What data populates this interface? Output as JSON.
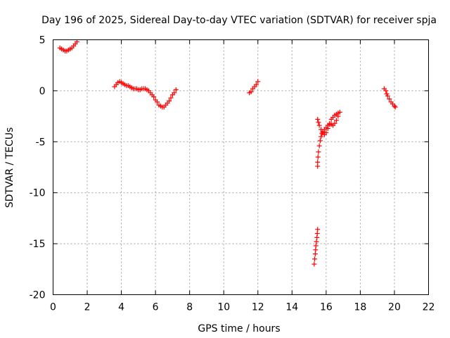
{
  "chart_data": {
    "type": "scatter",
    "title": "Day 196 of 2025, Sidereal Day-to-day VTEC variation (SDTVAR) for receiver spja",
    "xlabel": "GPS time / hours",
    "ylabel": "SDTVAR / TECUs",
    "xlim": [
      0,
      22
    ],
    "ylim": [
      -20,
      5
    ],
    "xticks": [
      0,
      2,
      4,
      6,
      8,
      10,
      12,
      14,
      16,
      18,
      20,
      22
    ],
    "xtick_labels": [
      "0",
      "2",
      "4",
      "6",
      "8",
      "10",
      "12",
      "14",
      "16",
      "18",
      "20",
      "22"
    ],
    "yticks": [
      5,
      0,
      -5,
      -10,
      -15,
      -20
    ],
    "ytick_labels": [
      "5",
      "0",
      "-5",
      "-10",
      "-15",
      "-20"
    ],
    "grid": true,
    "marker": "+",
    "color": "#ff0000",
    "series": [
      {
        "name": "SDTVAR",
        "points": [
          [
            0.4,
            4.2
          ],
          [
            0.5,
            4.1
          ],
          [
            0.6,
            4.0
          ],
          [
            0.7,
            3.9
          ],
          [
            0.8,
            3.9
          ],
          [
            0.9,
            4.0
          ],
          [
            1.0,
            4.1
          ],
          [
            1.1,
            4.2
          ],
          [
            1.2,
            4.4
          ],
          [
            1.3,
            4.6
          ],
          [
            1.4,
            4.8
          ],
          [
            3.6,
            0.4
          ],
          [
            3.7,
            0.6
          ],
          [
            3.8,
            0.8
          ],
          [
            3.9,
            0.9
          ],
          [
            4.0,
            0.8
          ],
          [
            4.1,
            0.7
          ],
          [
            4.2,
            0.6
          ],
          [
            4.3,
            0.5
          ],
          [
            4.4,
            0.5
          ],
          [
            4.5,
            0.4
          ],
          [
            4.6,
            0.3
          ],
          [
            4.7,
            0.2
          ],
          [
            4.8,
            0.2
          ],
          [
            4.9,
            0.2
          ],
          [
            5.0,
            0.1
          ],
          [
            5.1,
            0.1
          ],
          [
            5.2,
            0.2
          ],
          [
            5.3,
            0.2
          ],
          [
            5.4,
            0.2
          ],
          [
            5.5,
            0.1
          ],
          [
            5.6,
            0.0
          ],
          [
            5.7,
            -0.2
          ],
          [
            5.8,
            -0.4
          ],
          [
            5.9,
            -0.6
          ],
          [
            6.0,
            -0.9
          ],
          [
            6.1,
            -1.1
          ],
          [
            6.2,
            -1.4
          ],
          [
            6.3,
            -1.5
          ],
          [
            6.4,
            -1.6
          ],
          [
            6.5,
            -1.6
          ],
          [
            6.6,
            -1.4
          ],
          [
            6.7,
            -1.2
          ],
          [
            6.8,
            -1.0
          ],
          [
            6.9,
            -0.7
          ],
          [
            7.0,
            -0.4
          ],
          [
            7.1,
            -0.2
          ],
          [
            7.2,
            0.1
          ],
          [
            11.5,
            -0.2
          ],
          [
            11.6,
            -0.1
          ],
          [
            11.7,
            0.2
          ],
          [
            11.8,
            0.4
          ],
          [
            11.9,
            0.6
          ],
          [
            12.0,
            0.9
          ],
          [
            15.5,
            -7.0
          ],
          [
            15.52,
            -6.5
          ],
          [
            15.55,
            -6.0
          ],
          [
            15.6,
            -5.4
          ],
          [
            15.65,
            -4.9
          ],
          [
            15.7,
            -4.5
          ],
          [
            15.75,
            -4.2
          ],
          [
            15.8,
            -4.0
          ],
          [
            15.9,
            -3.8
          ],
          [
            16.0,
            -3.6
          ],
          [
            16.1,
            -3.4
          ],
          [
            16.2,
            -3.3
          ],
          [
            16.3,
            -3.3
          ],
          [
            16.4,
            -3.4
          ],
          [
            16.5,
            -3.2
          ],
          [
            16.6,
            -2.9
          ],
          [
            16.7,
            -2.5
          ],
          [
            16.8,
            -2.1
          ],
          [
            15.5,
            -2.8
          ],
          [
            15.55,
            -3.1
          ],
          [
            15.6,
            -3.4
          ],
          [
            15.7,
            -3.8
          ],
          [
            15.8,
            -4.1
          ],
          [
            15.9,
            -4.3
          ],
          [
            16.0,
            -4.1
          ],
          [
            16.1,
            -3.7
          ],
          [
            16.2,
            -3.2
          ],
          [
            16.3,
            -2.8
          ],
          [
            16.4,
            -2.6
          ],
          [
            16.5,
            -2.4
          ],
          [
            16.6,
            -2.3
          ],
          [
            16.7,
            -2.2
          ],
          [
            15.5,
            -7.4
          ],
          [
            15.3,
            -17.0
          ],
          [
            15.33,
            -16.5
          ],
          [
            15.36,
            -16.0
          ],
          [
            15.38,
            -15.6
          ],
          [
            15.4,
            -15.2
          ],
          [
            15.43,
            -14.8
          ],
          [
            15.46,
            -14.4
          ],
          [
            15.48,
            -14.0
          ],
          [
            15.5,
            -13.6
          ],
          [
            19.4,
            0.2
          ],
          [
            19.5,
            0.0
          ],
          [
            19.55,
            -0.3
          ],
          [
            19.6,
            -0.5
          ],
          [
            19.7,
            -0.8
          ],
          [
            19.8,
            -1.1
          ],
          [
            19.9,
            -1.3
          ],
          [
            20.0,
            -1.5
          ],
          [
            20.05,
            -1.6
          ]
        ]
      }
    ]
  }
}
